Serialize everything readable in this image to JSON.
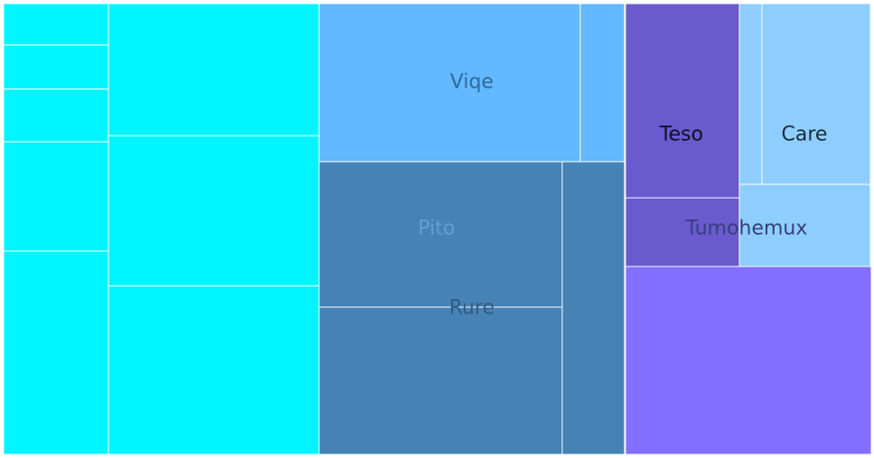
{
  "chart_data": {
    "type": "treemap",
    "title": "",
    "groups": [
      {
        "name": "",
        "color": "#00F5FF",
        "children": [
          {
            "name": "",
            "value": 0.0269
          },
          {
            "name": "",
            "value": 0.0285
          },
          {
            "name": "",
            "value": 0.0342
          },
          {
            "name": "",
            "value": 0.0709
          },
          {
            "name": "",
            "value": 0.1318
          },
          {
            "name": "",
            "value": 0.1694
          },
          {
            "name": "",
            "value": 0.1925
          },
          {
            "name": "",
            "value": 0.2161
          }
        ]
      },
      {
        "name": "Viqe",
        "color": "#63B8FF",
        "children": [
          {
            "name": "",
            "value": 0.2405
          },
          {
            "name": "",
            "value": 0.042
          }
        ]
      },
      {
        "name": "Rure",
        "color": "#4682B4",
        "label_color": "#2F5C86",
        "children": [
          {
            "name": "Pito",
            "value": 0.2058,
            "label_color": "#63A0CF"
          },
          {
            "name": "",
            "value": 0.2027
          },
          {
            "name": "",
            "value": 0.1639
          }
        ]
      },
      {
        "name": "Tumohemux",
        "color": "#6A5ACD",
        "label_color": "#35407A",
        "children": [
          {
            "name": "Teso",
            "value": 0.1322
          },
          {
            "name": "",
            "value": 0.0461
          },
          {
            "name": "",
            "value": 0.2093,
            "color": "#836FFF"
          }
        ]
      },
      {
        "name": "Care",
        "color": "#8ECEFF",
        "children": [
          {
            "name": "",
            "value": 0.0129
          },
          {
            "name": "",
            "value": 0.0857
          },
          {
            "name": "",
            "value": 0.0671
          }
        ]
      }
    ]
  }
}
